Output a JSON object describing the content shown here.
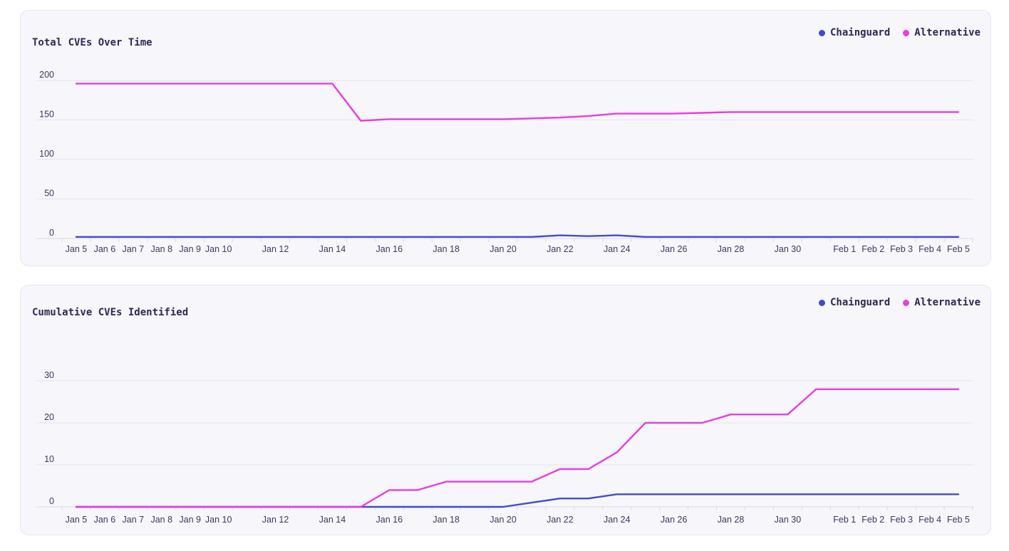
{
  "theme": {
    "card_background": "#f7f7fb",
    "card_border": "#e7e6f0",
    "text_color": "#2d2856",
    "tick_label_color": "#3c3760",
    "gridline_color": "#e4e3ed",
    "axis_color": "#d8d7e4",
    "chainguard_color": "#4349d5",
    "alternative_color": "#e83ce2"
  },
  "chart_data": [
    {
      "type": "line",
      "title": "Total CVEs Over Time",
      "grid": true,
      "legend_position": "top-right",
      "ylim": [
        0,
        200
      ],
      "y_ticks": [
        0,
        50,
        100,
        150,
        200
      ],
      "x": [
        "Jan 5",
        "Jan 6",
        "Jan 7",
        "Jan 8",
        "Jan 9",
        "Jan 10",
        "Jan 11",
        "Jan 12",
        "Jan 13",
        "Jan 14",
        "Jan 15",
        "Jan 16",
        "Jan 17",
        "Jan 18",
        "Jan 19",
        "Jan 20",
        "Jan 21",
        "Jan 22",
        "Jan 23",
        "Jan 24",
        "Jan 25",
        "Jan 26",
        "Jan 27",
        "Jan 28",
        "Jan 29",
        "Jan 30",
        "Jan 31",
        "Feb 1",
        "Feb 2",
        "Feb 3",
        "Feb 4",
        "Feb 5"
      ],
      "x_tick_labels_shown": [
        "Jan 5",
        "Jan 6",
        "Jan 7",
        "Jan 8",
        "Jan 9",
        "Jan 10",
        "Jan 12",
        "Jan 14",
        "Jan 16",
        "Jan 18",
        "Jan 20",
        "Jan 22",
        "Jan 24",
        "Jan 26",
        "Jan 28",
        "Jan 30",
        "Feb 1",
        "Feb 2",
        "Feb 3",
        "Feb 4",
        "Feb 5"
      ],
      "series": [
        {
          "name": "Chainguard",
          "color": "#4349d5",
          "values": [
            2,
            2,
            2,
            2,
            2,
            2,
            2,
            2,
            2,
            2,
            2,
            2,
            2,
            2,
            2,
            2,
            2,
            4,
            3,
            4,
            2,
            2,
            2,
            2,
            2,
            2,
            2,
            2,
            2,
            2,
            2,
            2
          ]
        },
        {
          "name": "Alternative",
          "color": "#e83ce2",
          "values": [
            196,
            196,
            196,
            196,
            196,
            196,
            196,
            196,
            196,
            196,
            149,
            151,
            151,
            151,
            151,
            151,
            152,
            153,
            155,
            158,
            158,
            158,
            159,
            160,
            160,
            160,
            160,
            160,
            160,
            160,
            160,
            160
          ]
        }
      ]
    },
    {
      "type": "line",
      "title": "Cumulative CVEs Identified",
      "grid": true,
      "legend_position": "top-right",
      "ylim": [
        0,
        30
      ],
      "y_ticks": [
        0,
        10,
        20,
        30
      ],
      "x": [
        "Jan 5",
        "Jan 6",
        "Jan 7",
        "Jan 8",
        "Jan 9",
        "Jan 10",
        "Jan 11",
        "Jan 12",
        "Jan 13",
        "Jan 14",
        "Jan 15",
        "Jan 16",
        "Jan 17",
        "Jan 18",
        "Jan 19",
        "Jan 20",
        "Jan 21",
        "Jan 22",
        "Jan 23",
        "Jan 24",
        "Jan 25",
        "Jan 26",
        "Jan 27",
        "Jan 28",
        "Jan 29",
        "Jan 30",
        "Jan 31",
        "Feb 1",
        "Feb 2",
        "Feb 3",
        "Feb 4",
        "Feb 5"
      ],
      "x_tick_labels_shown": [
        "Jan 5",
        "Jan 6",
        "Jan 7",
        "Jan 8",
        "Jan 9",
        "Jan 10",
        "Jan 12",
        "Jan 14",
        "Jan 16",
        "Jan 18",
        "Jan 20",
        "Jan 22",
        "Jan 24",
        "Jan 26",
        "Jan 28",
        "Jan 30",
        "Feb 1",
        "Feb 2",
        "Feb 3",
        "Feb 4",
        "Feb 5"
      ],
      "series": [
        {
          "name": "Chainguard",
          "color": "#4349d5",
          "values": [
            0,
            0,
            0,
            0,
            0,
            0,
            0,
            0,
            0,
            0,
            0,
            0,
            0,
            0,
            0,
            0,
            1,
            2,
            2,
            3,
            3,
            3,
            3,
            3,
            3,
            3,
            3,
            3,
            3,
            3,
            3,
            3
          ]
        },
        {
          "name": "Alternative",
          "color": "#e83ce2",
          "values": [
            0,
            0,
            0,
            0,
            0,
            0,
            0,
            0,
            0,
            0,
            0,
            4,
            4,
            6,
            6,
            6,
            6,
            9,
            9,
            13,
            20,
            20,
            20,
            22,
            22,
            22,
            28,
            28,
            28,
            28,
            28,
            28
          ]
        }
      ]
    }
  ]
}
